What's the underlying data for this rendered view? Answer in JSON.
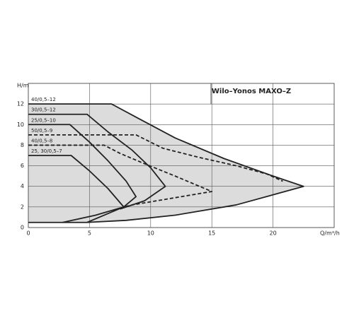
{
  "chart_data": {
    "type": "line",
    "title": "Wilo–Yonos MAXO–Z",
    "x_label": "Q/m³/h",
    "y_label": "H/m",
    "xlim": [
      0,
      25
    ],
    "ylim": [
      0,
      14
    ],
    "xticks": [
      0,
      5,
      10,
      15,
      20
    ],
    "yticks": [
      0,
      2,
      4,
      6,
      8,
      10,
      12
    ],
    "grid": true,
    "fill_color": "#dcdcdc",
    "series": [
      {
        "name": "40/0,5–12",
        "color": "#222222",
        "dashed": false,
        "fill": true,
        "x": [
          0,
          6.8,
          9,
          12,
          16,
          20,
          22.5,
          17,
          12,
          8,
          4.8,
          0
        ],
        "values": [
          12,
          12,
          10.6,
          8.7,
          6.7,
          5.0,
          4.0,
          2.2,
          1.2,
          0.7,
          0.5,
          0.5
        ]
      },
      {
        "name": "30/0,5–12",
        "color": "#222222",
        "dashed": false,
        "fill": false,
        "x": [
          0,
          4.8,
          6.5,
          8.5,
          10,
          11.2,
          9.5,
          7.5
        ],
        "values": [
          11,
          11,
          9.3,
          7.5,
          5.8,
          4.0,
          2.6,
          1.8
        ]
      },
      {
        "name": "25/0,5–10",
        "color": "#222222",
        "dashed": false,
        "fill": false,
        "x": [
          0,
          3.4,
          5,
          6.5,
          8,
          8.8,
          7.8,
          6,
          4.8
        ],
        "values": [
          10,
          10,
          8.3,
          6.5,
          4.5,
          3.0,
          2.0,
          1.1,
          0.5
        ]
      },
      {
        "name": "50/0,5–9",
        "color": "#222222",
        "dashed": true,
        "fill": false,
        "x": [
          0,
          8.8,
          11,
          14,
          17,
          19.5,
          20.8
        ],
        "values": [
          9,
          9,
          7.7,
          6.8,
          6.0,
          5.2,
          4.5
        ]
      },
      {
        "name": "40/0,5–8",
        "color": "#222222",
        "dashed": true,
        "fill": false,
        "x": [
          0,
          6.2,
          7.5,
          9.5,
          12,
          15,
          11,
          8.5,
          7.8
        ],
        "values": [
          8,
          8,
          7.2,
          6.2,
          5.0,
          3.5,
          2.7,
          2.2,
          2.0
        ]
      },
      {
        "name": "25, 30/0,5–7",
        "color": "#222222",
        "dashed": false,
        "fill": false,
        "x": [
          0,
          3.5,
          5,
          6.5,
          7.8,
          5.5,
          2.8
        ],
        "values": [
          7,
          7,
          5.5,
          3.8,
          2.0,
          1.2,
          0.5
        ]
      }
    ]
  }
}
